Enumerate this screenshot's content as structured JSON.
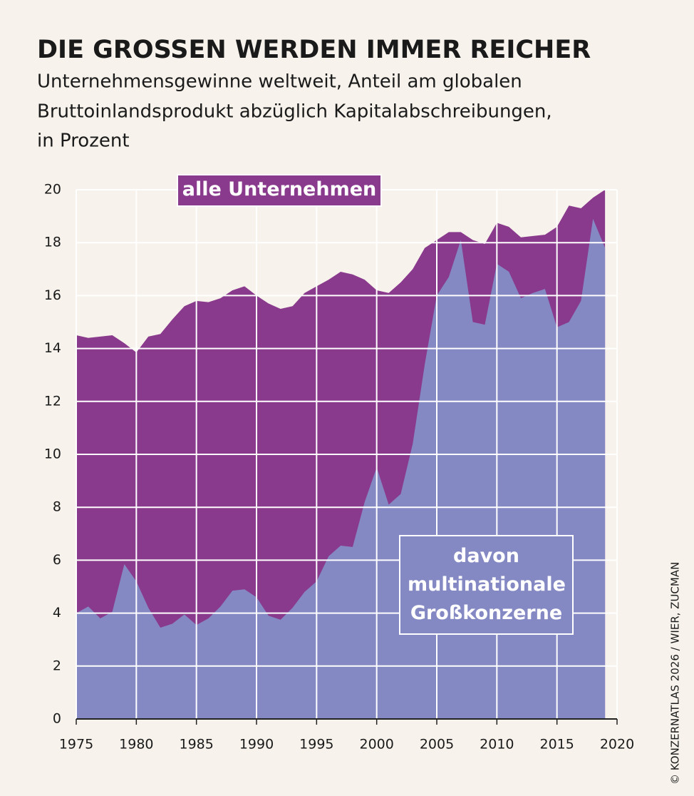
{
  "chart_data": {
    "type": "area",
    "title": "DIE GROSSEN WERDEN IMMER REICHER",
    "subtitle": [
      "Unternehmensgewinne weltweit, Anteil am globalen",
      "Bruttoinlandsprodukt abzüglich Kapitalabschreibungen,",
      "in Prozent"
    ],
    "credit": "© KONZERNATLAS 2026 / WIER, ZUCMAN",
    "x": [
      1975,
      1976,
      1977,
      1978,
      1979,
      1980,
      1981,
      1982,
      1983,
      1984,
      1985,
      1986,
      1987,
      1988,
      1989,
      1990,
      1991,
      1992,
      1993,
      1994,
      1995,
      1996,
      1997,
      1998,
      1999,
      2000,
      2001,
      2002,
      2003,
      2004,
      2005,
      2006,
      2007,
      2008,
      2009,
      2010,
      2011,
      2012,
      2013,
      2014,
      2015,
      2016,
      2017,
      2018,
      2019
    ],
    "series": [
      {
        "name": "alle Unternehmen",
        "color": "#8a3a8c",
        "values": [
          14.5,
          14.4,
          14.45,
          14.5,
          14.2,
          13.85,
          14.45,
          14.55,
          15.1,
          15.6,
          15.8,
          15.75,
          15.9,
          16.2,
          16.35,
          16.0,
          15.7,
          15.5,
          15.6,
          16.1,
          16.35,
          16.6,
          16.9,
          16.8,
          16.6,
          16.2,
          16.1,
          16.5,
          17.0,
          17.8,
          18.1,
          18.4,
          18.4,
          18.1,
          17.95,
          18.75,
          18.6,
          18.2,
          18.25,
          18.3,
          18.6,
          19.4,
          19.3,
          19.7,
          20.0
        ]
      },
      {
        "name": "davon multinationale Großkonzerne",
        "color": "#8489c4",
        "values": [
          4.0,
          4.25,
          3.8,
          4.05,
          5.85,
          5.2,
          4.2,
          3.45,
          3.6,
          3.95,
          3.55,
          3.8,
          4.25,
          4.85,
          4.9,
          4.6,
          3.9,
          3.75,
          4.2,
          4.8,
          5.2,
          6.15,
          6.55,
          6.5,
          8.2,
          9.5,
          8.1,
          8.5,
          10.4,
          13.4,
          16.0,
          16.7,
          18.1,
          15.0,
          14.9,
          17.2,
          16.9,
          15.9,
          16.1,
          16.25,
          14.8,
          15.0,
          15.8,
          18.9,
          17.8
        ]
      }
    ],
    "xlim": [
      1975,
      2020
    ],
    "xticks": [
      1975,
      1980,
      1985,
      1990,
      1995,
      2000,
      2005,
      2010,
      2015,
      2020
    ],
    "ylim": [
      0,
      20
    ],
    "yticks": [
      0,
      2,
      4,
      6,
      8,
      10,
      12,
      14,
      16,
      18,
      20
    ],
    "grid": true
  }
}
